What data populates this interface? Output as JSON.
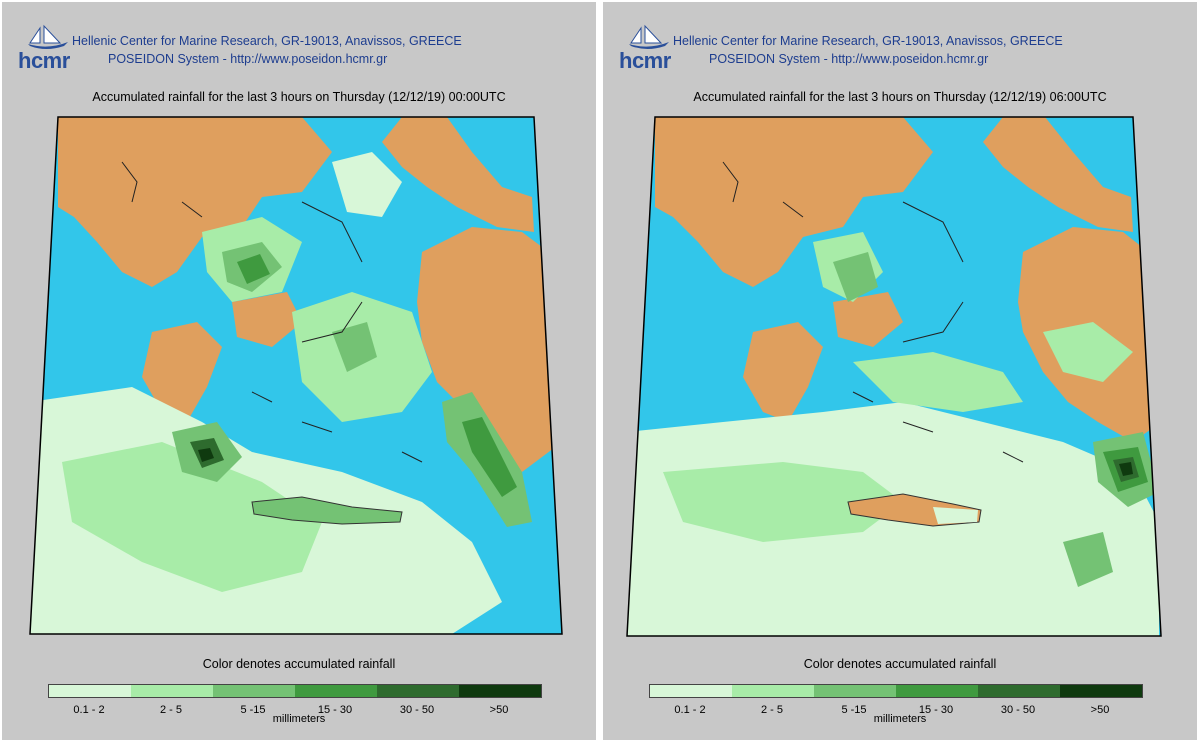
{
  "header": {
    "logo_text": "hcmr",
    "line1": "Hellenic Center for Marine Research, GR-19013, Anavissos, GREECE",
    "line2": "POSEIDON System - http://www.poseidon.hcmr.gr"
  },
  "panels": [
    {
      "title": "Accumulated rainfall for the last 3 hours on Thursday (12/12/19) 00:00UTC"
    },
    {
      "title": "Accumulated rainfall for the last 3 hours on Thursday (12/12/19) 06:00UTC"
    }
  ],
  "legend": {
    "title": "Color denotes accumulated rainfall",
    "units": "millimeters",
    "classes": [
      {
        "label": "0.1 - 2",
        "color": "#d8f7d8"
      },
      {
        "label": "2 - 5",
        "color": "#a8eca8"
      },
      {
        "label": "5 -15",
        "color": "#74c274"
      },
      {
        "label": "15 - 30",
        "color": "#3f9a3f"
      },
      {
        "label": "30 - 50",
        "color": "#2e6b2e"
      },
      {
        "label": ">50",
        "color": "#0f3a0f"
      }
    ]
  },
  "colors": {
    "sea": "#32c6ea",
    "land": "#df9f5e",
    "background": "#c8c8c8"
  }
}
